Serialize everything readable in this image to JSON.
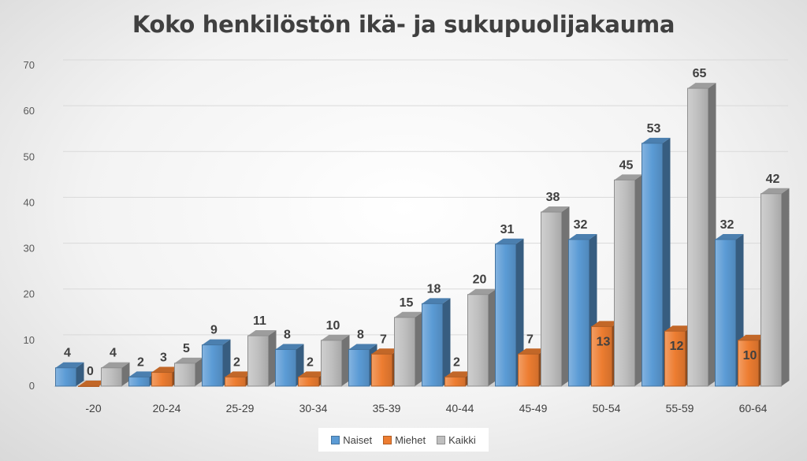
{
  "chart_data": {
    "type": "bar",
    "title": "Koko henkilöstön ikä- ja sukupuolijakauma",
    "categories": [
      "-20",
      "20-24",
      "25-29",
      "30-34",
      "35-39",
      "40-44",
      "45-49",
      "50-54",
      "55-59",
      "60-64"
    ],
    "series": [
      {
        "name": "Naiset",
        "values": [
          4,
          2,
          9,
          8,
          8,
          18,
          31,
          32,
          53,
          32
        ],
        "color": "#5b9bd5"
      },
      {
        "name": "Miehet",
        "values": [
          0,
          3,
          2,
          2,
          7,
          2,
          7,
          13,
          12,
          10
        ],
        "color": "#ed7d31"
      },
      {
        "name": "Kaikki",
        "values": [
          4,
          5,
          11,
          10,
          15,
          20,
          38,
          45,
          65,
          42
        ],
        "color": "#bfbfbf"
      }
    ],
    "y_ticks": [
      "0",
      "10",
      "20",
      "30",
      "40",
      "50",
      "60",
      "70"
    ],
    "ylim": [
      0,
      70
    ],
    "xlabel": "",
    "ylabel": "",
    "grid": true,
    "legend_position": "bottom"
  }
}
